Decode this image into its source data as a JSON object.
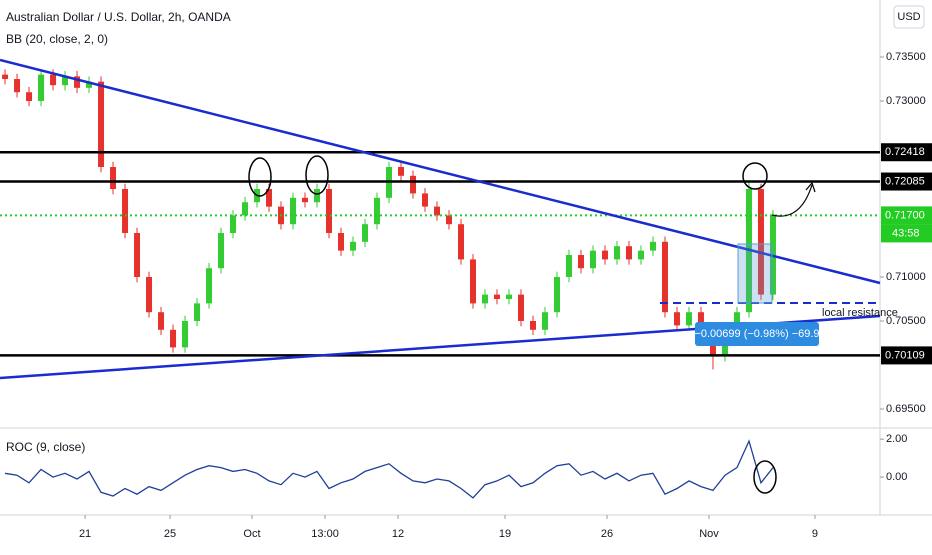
{
  "chart_data": [
    {
      "type": "candlestick",
      "title": "Australian Dollar / U.S. Dollar, 2h, OANDA",
      "subtitle": "BB (20, close, 2, 0)",
      "currency": "USD",
      "up_color": "#33cc33",
      "down_color": "#e5322d",
      "open": [
        0.733,
        0.7325,
        0.731,
        0.73,
        0.733,
        0.7318,
        0.7328,
        0.7315,
        0.7322,
        0.7225,
        0.72,
        0.715,
        0.71,
        0.706,
        0.704,
        0.702,
        0.705,
        0.707,
        0.711,
        0.715,
        0.717,
        0.7185,
        0.72,
        0.718,
        0.716,
        0.719,
        0.7185,
        0.72,
        0.715,
        0.713,
        0.714,
        0.716,
        0.719,
        0.7225,
        0.7215,
        0.7195,
        0.718,
        0.717,
        0.716,
        0.712,
        0.707,
        0.708,
        0.7075,
        0.708,
        0.705,
        0.704,
        0.706,
        0.71,
        0.7125,
        0.711,
        0.713,
        0.712,
        0.7135,
        0.712,
        0.713,
        0.714,
        0.706,
        0.7045,
        0.706,
        0.703,
        0.701,
        0.7035,
        0.706,
        0.72,
        0.708
      ],
      "high": [
        0.7336,
        0.7331,
        0.7316,
        0.7336,
        0.7336,
        0.7334,
        0.7334,
        0.7328,
        0.7328,
        0.7231,
        0.7206,
        0.7156,
        0.7106,
        0.7066,
        0.7046,
        0.7056,
        0.7076,
        0.7116,
        0.7156,
        0.7176,
        0.7191,
        0.7206,
        0.7206,
        0.7186,
        0.7196,
        0.7196,
        0.7206,
        0.7206,
        0.7156,
        0.7146,
        0.7166,
        0.7196,
        0.7231,
        0.7231,
        0.7221,
        0.7201,
        0.7186,
        0.7176,
        0.7166,
        0.7126,
        0.7086,
        0.7086,
        0.7086,
        0.7086,
        0.7056,
        0.7066,
        0.7106,
        0.7131,
        0.7131,
        0.7136,
        0.7136,
        0.7141,
        0.7141,
        0.7136,
        0.7146,
        0.7146,
        0.7066,
        0.7066,
        0.7066,
        0.7036,
        0.7041,
        0.7066,
        0.721,
        0.7206,
        0.7176
      ],
      "low": [
        0.7319,
        0.7304,
        0.7294,
        0.7294,
        0.7312,
        0.7312,
        0.7309,
        0.7309,
        0.7219,
        0.7194,
        0.7144,
        0.7094,
        0.7054,
        0.7034,
        0.7014,
        0.7014,
        0.7044,
        0.7064,
        0.7104,
        0.7144,
        0.7164,
        0.7179,
        0.7174,
        0.7154,
        0.7154,
        0.7179,
        0.7179,
        0.7144,
        0.7124,
        0.7124,
        0.7134,
        0.7154,
        0.7184,
        0.7209,
        0.7189,
        0.7174,
        0.7164,
        0.7154,
        0.7114,
        0.7064,
        0.7064,
        0.7069,
        0.7069,
        0.7044,
        0.7034,
        0.7034,
        0.7054,
        0.7094,
        0.7104,
        0.7104,
        0.7114,
        0.7114,
        0.7114,
        0.7114,
        0.7124,
        0.7054,
        0.7039,
        0.7039,
        0.7024,
        0.6995,
        0.7004,
        0.7029,
        0.7054,
        0.7074,
        0.7074
      ],
      "close": [
        0.7325,
        0.731,
        0.73,
        0.733,
        0.7318,
        0.7328,
        0.7315,
        0.7322,
        0.7225,
        0.72,
        0.715,
        0.71,
        0.706,
        0.704,
        0.702,
        0.705,
        0.707,
        0.711,
        0.715,
        0.717,
        0.7185,
        0.72,
        0.718,
        0.716,
        0.719,
        0.7185,
        0.72,
        0.715,
        0.713,
        0.714,
        0.716,
        0.719,
        0.7225,
        0.7215,
        0.7195,
        0.718,
        0.717,
        0.716,
        0.712,
        0.707,
        0.708,
        0.7075,
        0.708,
        0.705,
        0.704,
        0.706,
        0.71,
        0.7125,
        0.711,
        0.713,
        0.712,
        0.7135,
        0.712,
        0.713,
        0.714,
        0.706,
        0.7045,
        0.706,
        0.703,
        0.701,
        0.7035,
        0.706,
        0.72,
        0.708,
        0.717
      ],
      "xlim": [
        -0.42,
        72.92
      ],
      "xticks": [
        {
          "value": 6.67,
          "label": "21"
        },
        {
          "value": 13.75,
          "label": "25"
        },
        {
          "value": 20.58,
          "label": "Oct"
        },
        {
          "value": 26.67,
          "label": "13:00"
        },
        {
          "value": 32.75,
          "label": "12"
        },
        {
          "value": 41.67,
          "label": "19"
        },
        {
          "value": 50.17,
          "label": "26"
        },
        {
          "value": 58.67,
          "label": "Nov"
        },
        {
          "value": 67.5,
          "label": "9"
        }
      ],
      "ylim": [
        0.69284,
        0.74148
      ],
      "yticks": [
        {
          "value": 0.735,
          "label": "0.73500"
        },
        {
          "value": 0.73,
          "label": "0.73000"
        },
        {
          "value": 0.71,
          "label": "0.71000"
        },
        {
          "value": 0.705,
          "label": "0.70500"
        },
        {
          "value": 0.695,
          "label": "0.69500"
        }
      ],
      "levels": [
        {
          "value": 0.72418,
          "label": "0.72418",
          "color": "#000000"
        },
        {
          "value": 0.72085,
          "label": "0.72085",
          "color": "#000000"
        },
        {
          "value": 0.717,
          "label": "0.71700",
          "color": "#22cc22"
        },
        {
          "value": 0.70109,
          "label": "0.70109",
          "color": "#000000"
        }
      ],
      "countdown": "43:58",
      "annotations": {
        "resistance": "local resistance",
        "measure": "−0.00699 (−0.98%) −69.9"
      }
    },
    {
      "type": "line",
      "title": "ROC (9, close)",
      "color": "#1f3f99",
      "values": [
        0.2,
        0.1,
        -0.3,
        0.4,
        0.0,
        0.2,
        -0.1,
        0.3,
        -0.8,
        -1.0,
        -0.6,
        -0.9,
        -0.5,
        -0.7,
        -0.3,
        0.1,
        0.4,
        0.6,
        0.5,
        0.3,
        0.4,
        0.2,
        -0.2,
        -0.4,
        0.2,
        0.0,
        0.3,
        -0.6,
        -0.3,
        -0.1,
        0.3,
        0.5,
        0.7,
        0.2,
        -0.2,
        -0.3,
        -0.1,
        -0.2,
        -0.6,
        -1.1,
        -0.4,
        -0.2,
        0.1,
        -0.5,
        -0.3,
        0.2,
        0.6,
        0.7,
        0.1,
        0.3,
        -0.1,
        0.2,
        -0.2,
        0.1,
        0.2,
        -0.9,
        -0.6,
        -0.2,
        -0.5,
        -0.7,
        0.1,
        0.5,
        1.9,
        -0.3,
        0.5
      ],
      "ylim": [
        -2.0,
        2.59
      ],
      "yticks": [
        {
          "value": 2,
          "label": "2.00"
        },
        {
          "value": 0,
          "label": "0.00"
        }
      ]
    }
  ]
}
